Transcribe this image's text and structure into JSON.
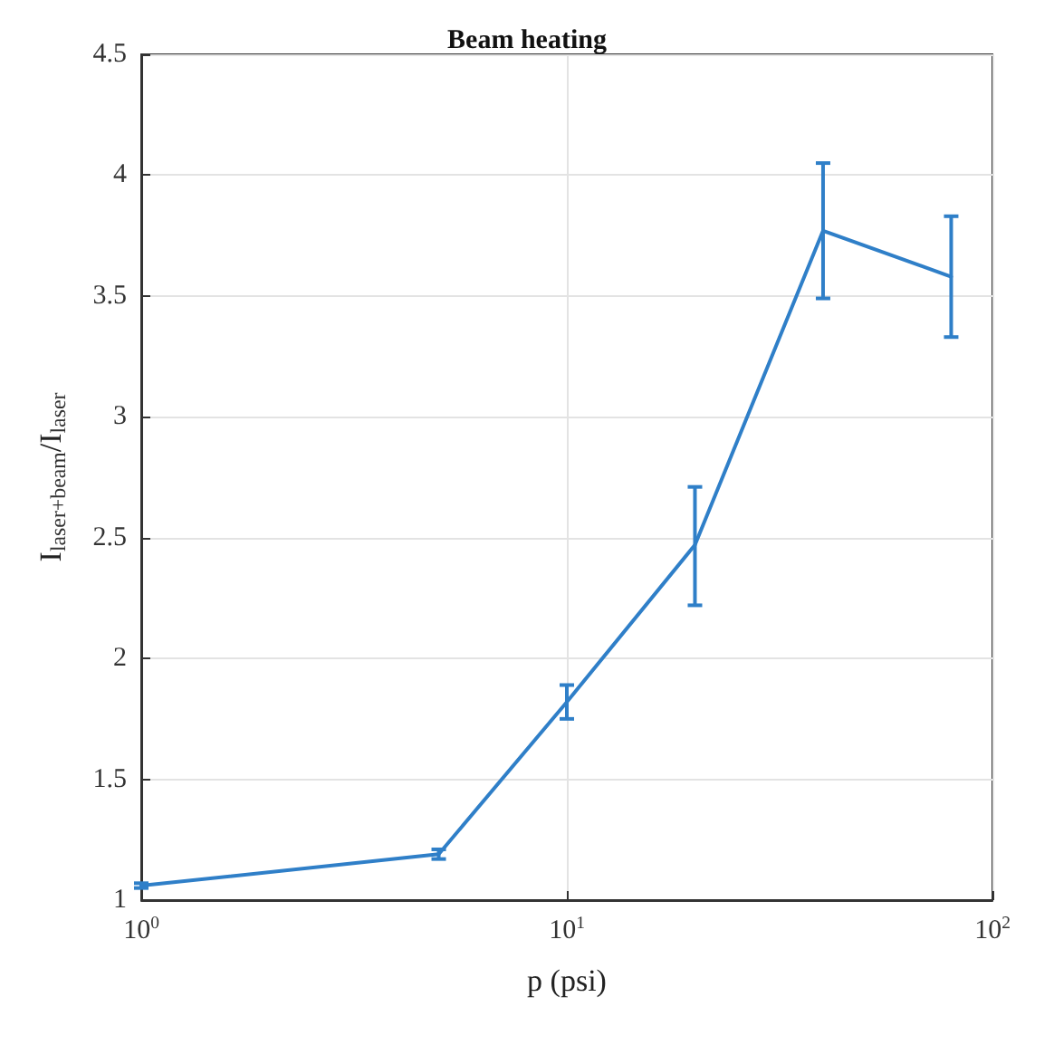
{
  "chart_data": {
    "type": "line",
    "title": "Beam heating",
    "xlabel": "p (psi)",
    "ylabel": "I$_{laser+beam}$/I$_{laser}$",
    "x": [
      1,
      5,
      10,
      20,
      40,
      80
    ],
    "series": [
      {
        "color": "#2f7fc8",
        "values": [
          1.06,
          1.19,
          1.82,
          2.47,
          3.77,
          3.58
        ],
        "errors": [
          0.01,
          0.02,
          [
            1.75,
            1.89
          ],
          [
            2.22,
            2.71
          ],
          [
            3.49,
            4.05
          ],
          [
            3.33,
            3.83
          ]
        ]
      }
    ],
    "log": "x",
    "xlim": [
      1,
      100
    ],
    "xticks": [
      {
        "value": 1,
        "label": "10$^{0}$"
      },
      {
        "value": 10,
        "label": "10$^{1}$"
      },
      {
        "value": 100,
        "label": "10$^{2}$"
      }
    ],
    "ylim": [
      1,
      4.5
    ],
    "yticks": [
      1,
      1.5,
      2,
      2.5,
      3,
      3.5,
      4,
      4.5
    ],
    "grid": true,
    "marker": "none",
    "line_style": "solid"
  }
}
